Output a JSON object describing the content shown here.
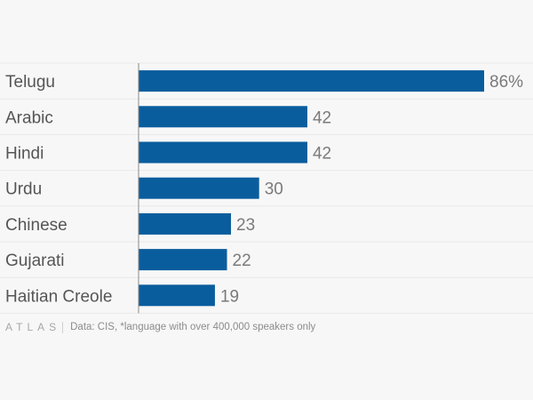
{
  "chart_data": {
    "type": "bar",
    "orientation": "horizontal",
    "categories": [
      "Telugu",
      "Arabic",
      "Hindi",
      "Urdu",
      "Chinese",
      "Gujarati",
      "Haitian Creole"
    ],
    "values": [
      86,
      42,
      42,
      30,
      23,
      22,
      19
    ],
    "value_labels": [
      "86%",
      "42",
      "42",
      "30",
      "23",
      "22",
      "19"
    ],
    "xlim": [
      0,
      86
    ],
    "bar_color": "#0a5d9d",
    "title": "",
    "xlabel": "",
    "ylabel": "",
    "grid": true
  },
  "footer": {
    "brand": "ATLAS",
    "source": "Data: CIS, *language with over 400,000 speakers only"
  }
}
